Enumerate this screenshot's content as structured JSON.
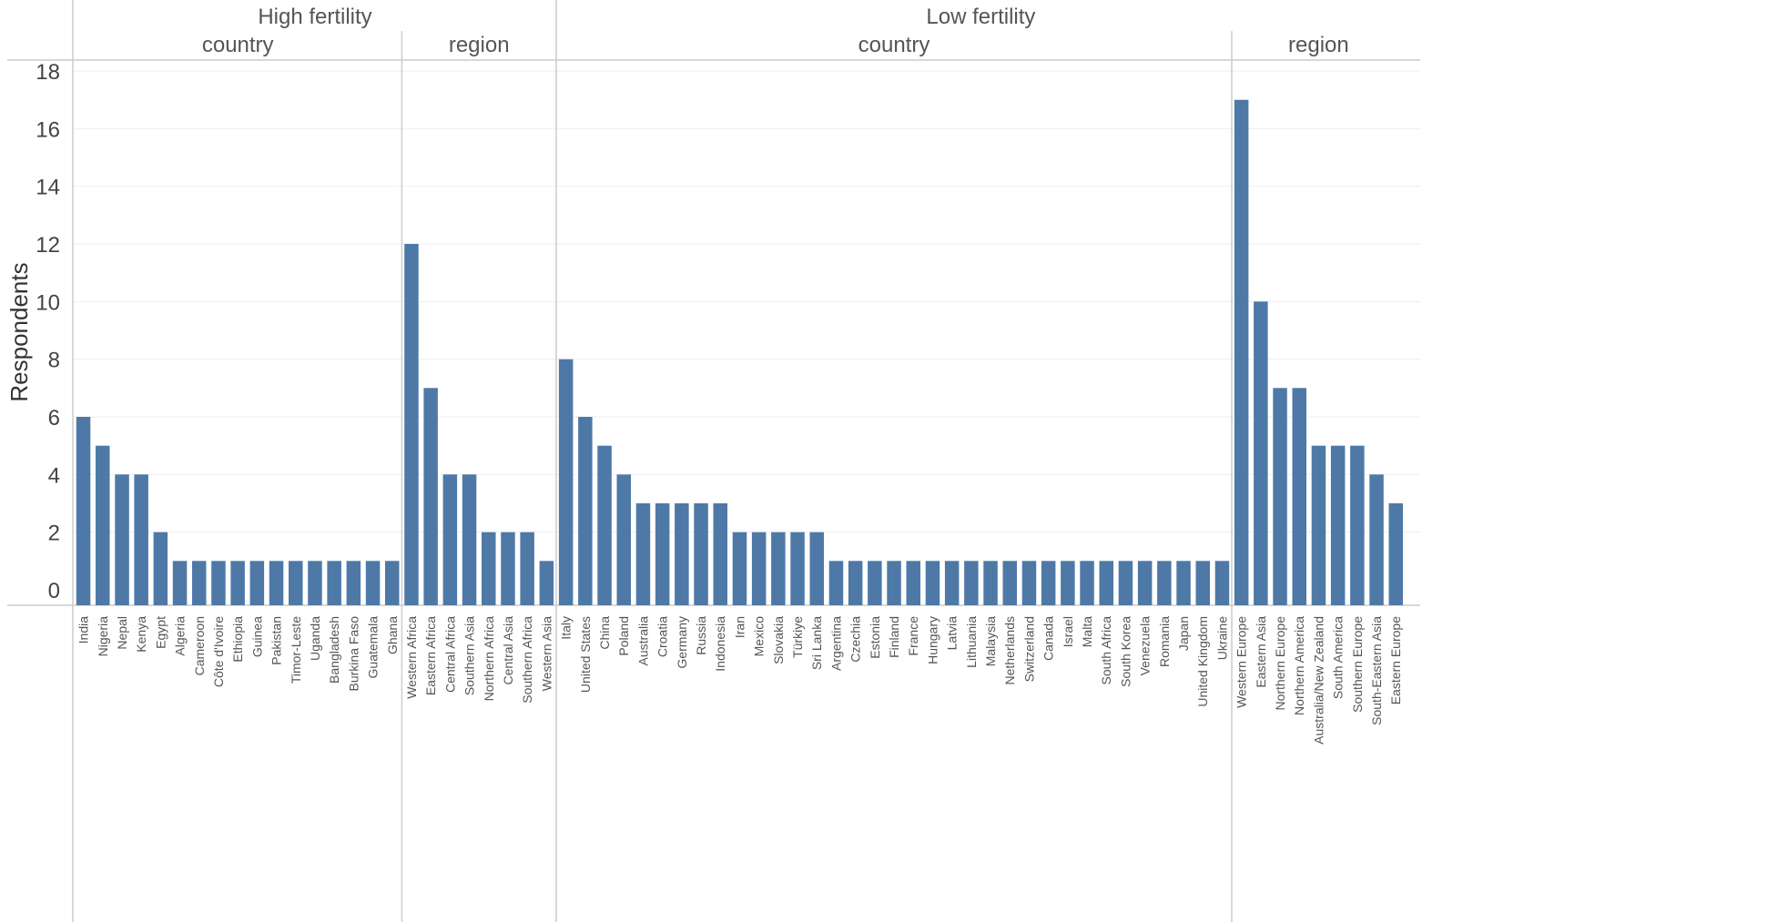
{
  "chart_data": {
    "type": "bar",
    "ylabel": "Respondents",
    "ylim": [
      0,
      18
    ],
    "yticks": [
      0,
      2,
      4,
      6,
      8,
      10,
      12,
      14,
      16,
      18
    ],
    "grid": true,
    "color": "#4e79a7",
    "groups": [
      {
        "name": "High fertility",
        "subgroups": [
          {
            "name": "country",
            "categories": [
              "India",
              "Nigeria",
              "Nepal",
              "Kenya",
              "Egypt",
              "Algeria",
              "Cameroon",
              "Côte d'Ivoire",
              "Ethiopia",
              "Guinea",
              "Pakistan",
              "Timor-Leste",
              "Uganda",
              "Bangladesh",
              "Burkina Faso",
              "Guatemala",
              "Ghana"
            ],
            "values": [
              6,
              5,
              4,
              4,
              2,
              1,
              1,
              1,
              1,
              1,
              1,
              1,
              1,
              1,
              1,
              1,
              1
            ]
          },
          {
            "name": "region",
            "categories": [
              "Western Africa",
              "Eastern Africa",
              "Central Africa",
              "Southern Asia",
              "Northern Africa",
              "Central Asia",
              "Southern Africa",
              "Western Asia"
            ],
            "values": [
              12,
              7,
              4,
              4,
              2,
              2,
              2,
              1
            ]
          }
        ]
      },
      {
        "name": "Low fertility",
        "subgroups": [
          {
            "name": "country",
            "categories": [
              "Italy",
              "United States",
              "China",
              "Poland",
              "Australia",
              "Croatia",
              "Germany",
              "Russia",
              "Indonesia",
              "Iran",
              "Mexico",
              "Slovakia",
              "Türkiye",
              "Sri Lanka",
              "Argentina",
              "Czechia",
              "Estonia",
              "Finland",
              "France",
              "Hungary",
              "Latvia",
              "Lithuania",
              "Malaysia",
              "Netherlands",
              "Switzerland",
              "Canada",
              "Israel",
              "Malta",
              "South Africa",
              "South Korea",
              "Venezuela",
              "Romania",
              "Japan",
              "United Kingdom",
              "Ukraine"
            ],
            "values": [
              8,
              6,
              5,
              4,
              3,
              3,
              3,
              3,
              3,
              2,
              2,
              2,
              2,
              2,
              1,
              1,
              1,
              1,
              1,
              1,
              1,
              1,
              1,
              1,
              1,
              1,
              1,
              1,
              1,
              1,
              1,
              1,
              1,
              1,
              1
            ]
          },
          {
            "name": "region",
            "categories": [
              "Western Europe",
              "Eastern Asia",
              "Northern Europe",
              "Northern America",
              "Australia/New Zealand",
              "South America",
              "Southern Europe",
              "South-Eastern Asia",
              "Eastern Europe"
            ],
            "values": [
              17,
              10,
              7,
              7,
              5,
              5,
              5,
              4,
              3
            ]
          }
        ]
      }
    ]
  }
}
